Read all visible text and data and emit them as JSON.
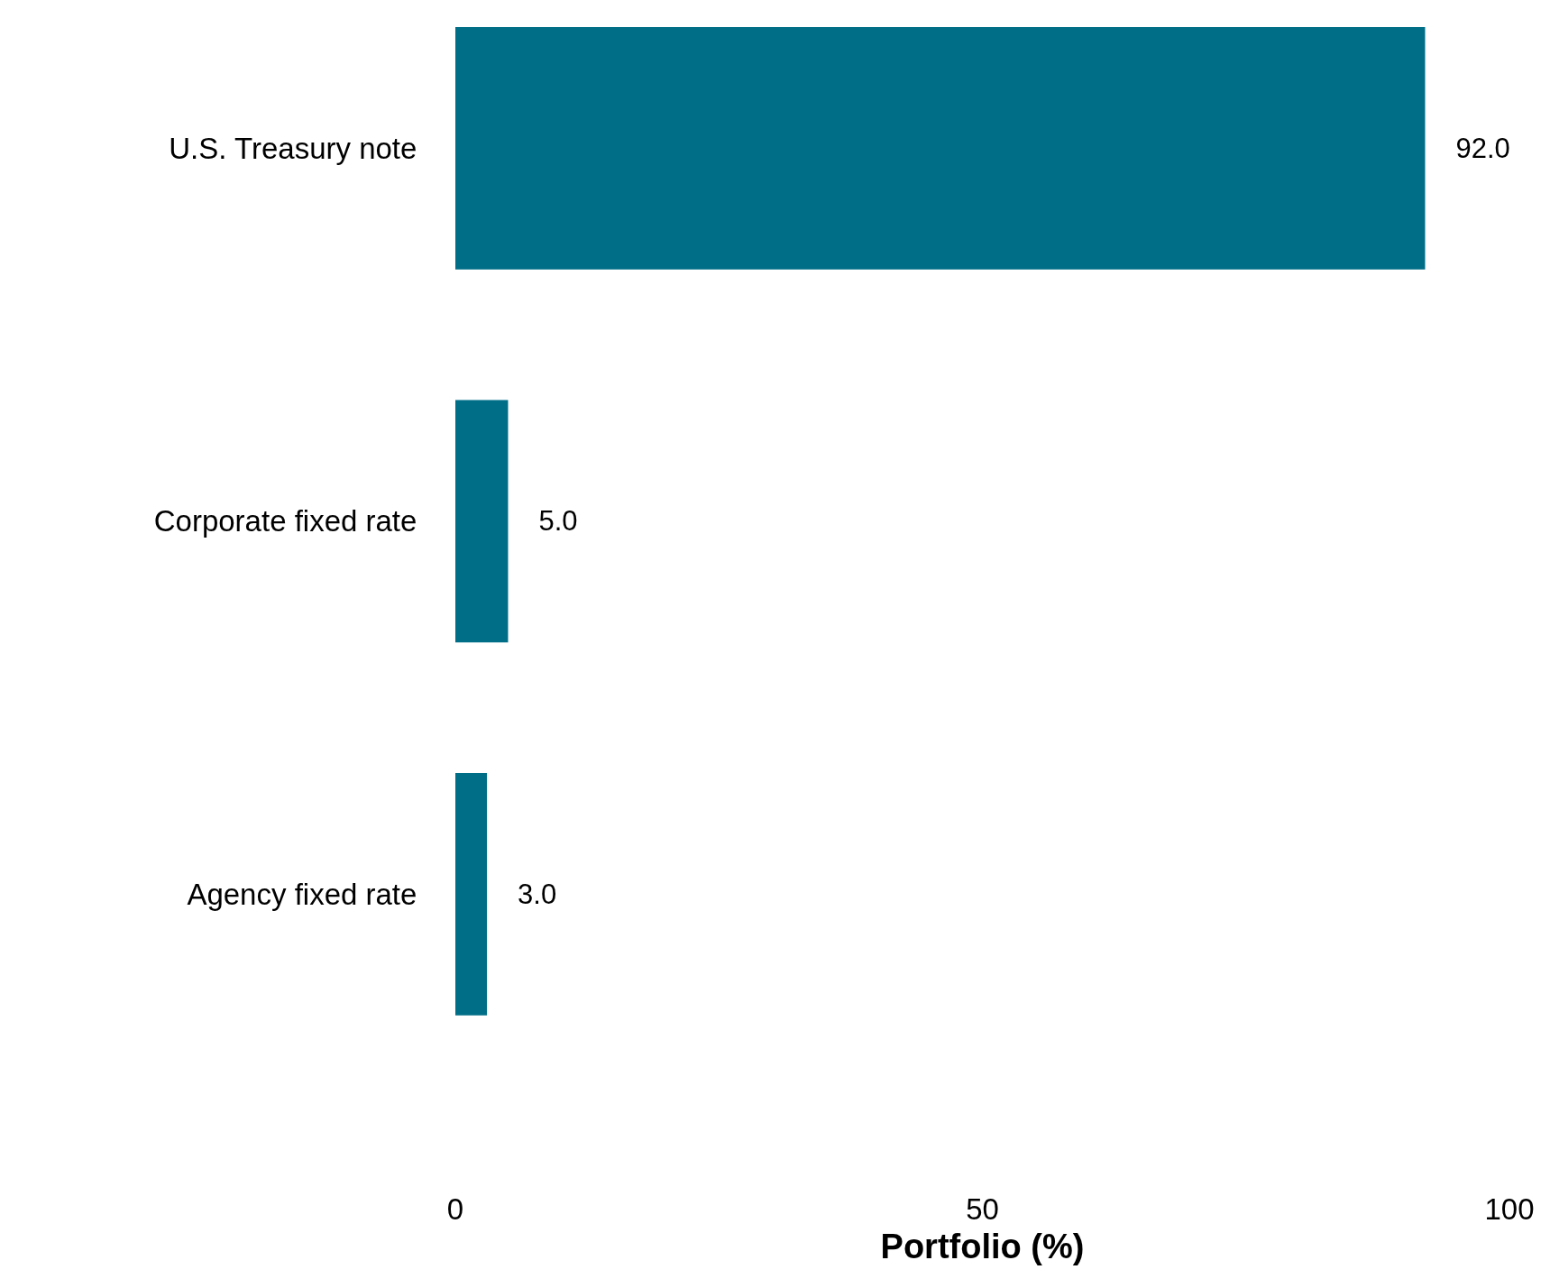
{
  "chart_data": {
    "type": "bar",
    "orientation": "horizontal",
    "xlabel": "Portfolio (%)",
    "categories": [
      "U.S. Treasury note",
      "Corporate fixed rate",
      "Agency fixed rate"
    ],
    "values": [
      92.0,
      5.0,
      3.0
    ],
    "value_labels": [
      "92.0",
      "5.0",
      "3.0"
    ],
    "color": "#006e87",
    "xlim": [
      0,
      100
    ],
    "xticks": [
      0,
      50,
      100
    ],
    "legend": false
  }
}
